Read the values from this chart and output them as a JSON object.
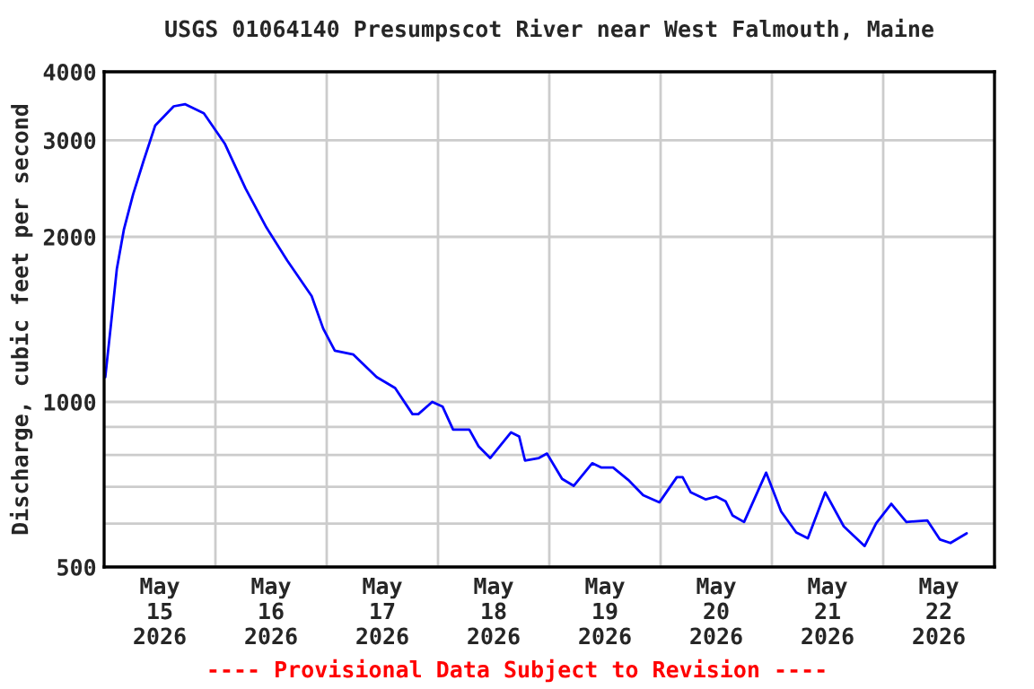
{
  "chart_data": {
    "type": "line",
    "title": "USGS 01064140 Presumpscot River near West Falmouth, Maine",
    "ylabel": "Discharge, cubic feet per second",
    "annotations": [
      "---- Provisional Data Subject to Revision ----"
    ],
    "log": "y",
    "grid": true,
    "legend": false,
    "marker": "none",
    "line_style": "solid",
    "xlim": [
      "2026-05-15T00:00",
      "2026-05-23T00:00"
    ],
    "xticks": [
      {
        "value": "2026-05-15T12:00",
        "label": "May\n15\n2026"
      },
      {
        "value": "2026-05-16T12:00",
        "label": "May\n16\n2026"
      },
      {
        "value": "2026-05-17T12:00",
        "label": "May\n17\n2026"
      },
      {
        "value": "2026-05-18T12:00",
        "label": "May\n18\n2026"
      },
      {
        "value": "2026-05-19T12:00",
        "label": "May\n19\n2026"
      },
      {
        "value": "2026-05-20T12:00",
        "label": "May\n20\n2026"
      },
      {
        "value": "2026-05-21T12:00",
        "label": "May\n21\n2026"
      },
      {
        "value": "2026-05-22T12:00",
        "label": "May\n22\n2026"
      },
      {
        "value": "2026-05-16T00:00",
        "label": null
      },
      {
        "value": "2026-05-17T00:00",
        "label": null
      },
      {
        "value": "2026-05-18T00:00",
        "label": null
      },
      {
        "value": "2026-05-19T00:00",
        "label": null
      },
      {
        "value": "2026-05-20T00:00",
        "label": null
      },
      {
        "value": "2026-05-21T00:00",
        "label": null
      },
      {
        "value": "2026-05-22T00:00",
        "label": null
      }
    ],
    "ylim": [
      500,
      4000
    ],
    "yticks": [
      500,
      {
        "value": 600,
        "label": null
      },
      {
        "value": 700,
        "label": null
      },
      {
        "value": 800,
        "label": null
      },
      {
        "value": 900,
        "label": null
      },
      1000,
      2000,
      3000,
      4000
    ],
    "series": [
      {
        "color": "#0000ff",
        "x": [
          "2026-05-15T00:15",
          "2026-05-15T01:30",
          "2026-05-15T02:45",
          "2026-05-15T04:15",
          "2026-05-15T06:15",
          "2026-05-15T08:30",
          "2026-05-15T11:00",
          "2026-05-15T15:00",
          "2026-05-15T17:30",
          "2026-05-15T21:30",
          "2026-05-16T02:00",
          "2026-05-16T06:30",
          "2026-05-16T11:00",
          "2026-05-16T15:30",
          "2026-05-16T20:45",
          "2026-05-16T23:15",
          "2026-05-17T01:45",
          "2026-05-17T05:45",
          "2026-05-17T07:30",
          "2026-05-17T10:45",
          "2026-05-17T14:45",
          "2026-05-17T18:30",
          "2026-05-17T19:45",
          "2026-05-17T22:45",
          "2026-05-18T01:00",
          "2026-05-18T03:15",
          "2026-05-18T06:45",
          "2026-05-18T08:45",
          "2026-05-18T11:15",
          "2026-05-18T15:45",
          "2026-05-18T17:30",
          "2026-05-18T18:45",
          "2026-05-18T21:45",
          "2026-05-18T23:30",
          "2026-05-19T02:45",
          "2026-05-19T05:15",
          "2026-05-19T09:15",
          "2026-05-19T11:15",
          "2026-05-19T13:45",
          "2026-05-19T17:00",
          "2026-05-19T20:15",
          "2026-05-19T23:45",
          "2026-05-20T03:30",
          "2026-05-20T04:45",
          "2026-05-20T06:30",
          "2026-05-20T09:45",
          "2026-05-20T12:00",
          "2026-05-20T14:00",
          "2026-05-20T15:30",
          "2026-05-20T18:00",
          "2026-05-20T22:45",
          "2026-05-21T02:00",
          "2026-05-21T05:15",
          "2026-05-21T07:45",
          "2026-05-21T11:30",
          "2026-05-21T15:30",
          "2026-05-21T20:00",
          "2026-05-21T22:30",
          "2026-05-22T01:45",
          "2026-05-22T05:00",
          "2026-05-22T09:30",
          "2026-05-22T12:15",
          "2026-05-22T14:30",
          "2026-05-22T18:00"
        ],
        "values": [
          1110,
          1390,
          1750,
          2060,
          2390,
          2750,
          3190,
          3460,
          3490,
          3360,
          2960,
          2450,
          2080,
          1810,
          1560,
          1360,
          1240,
          1220,
          1180,
          1110,
          1060,
          950,
          950,
          1000,
          980,
          890,
          890,
          830,
          790,
          880,
          865,
          782,
          790,
          805,
          724,
          703,
          773,
          759,
          759,
          721,
          676,
          656,
          729,
          729,
          684,
          664,
          672,
          659,
          621,
          604,
          743,
          631,
          578,
          564,
          684,
          593,
          546,
          601,
          652,
          604,
          608,
          561,
          553,
          576
        ]
      }
    ]
  }
}
